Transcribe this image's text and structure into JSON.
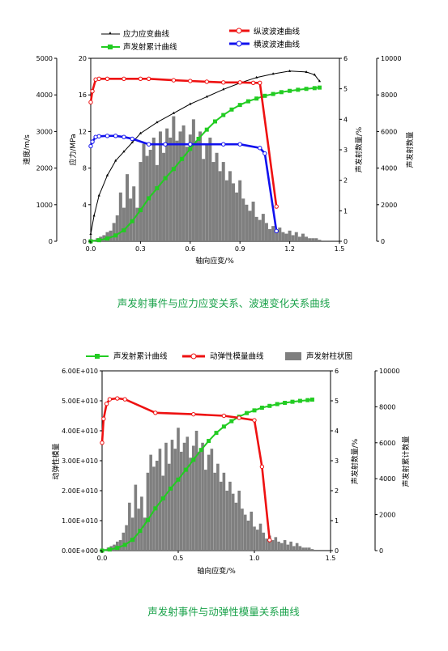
{
  "chart_data": [
    {
      "type": "line",
      "caption": "声发射事件与应力应变关系、波速变化关系曲线",
      "title": "",
      "xlabel": "轴向应变/%",
      "xlim": [
        0,
        1.5
      ],
      "xticks": [
        "0.0",
        "0.3",
        "0.6",
        "0.9",
        "1.2",
        "1.5"
      ],
      "axes": {
        "velocity": {
          "label": "速度/m/s",
          "lim": [
            0,
            5000
          ],
          "ticks": [
            "0",
            "1000",
            "2000",
            "3000",
            "4000",
            "5000"
          ]
        },
        "stress": {
          "label": "应力/MPa",
          "lim": [
            0,
            20
          ],
          "ticks": [
            "0",
            "4",
            "8",
            "12",
            "16",
            "20"
          ]
        },
        "ae_count": {
          "label": "声发射数量/%",
          "lim": [
            0,
            6
          ],
          "ticks": [
            "0",
            "1",
            "2",
            "3",
            "4",
            "5",
            "6"
          ]
        },
        "ae_cumulative": {
          "label": "声发射数量",
          "lim": [
            0,
            10000
          ],
          "ticks": [
            "0",
            "2000",
            "4000",
            "6000",
            "8000",
            "10000"
          ]
        }
      },
      "legend": [
        "应力应变曲线",
        "声发射累计曲线",
        "纵波波速曲线",
        "横波波速曲线"
      ],
      "series": [
        {
          "name": "应力应变曲线",
          "axis": "stress",
          "color": "#000000",
          "x": [
            0,
            0.02,
            0.05,
            0.1,
            0.15,
            0.2,
            0.25,
            0.3,
            0.4,
            0.5,
            0.6,
            0.7,
            0.8,
            0.9,
            1.0,
            1.1,
            1.2,
            1.3,
            1.35,
            1.38
          ],
          "y": [
            0.8,
            2.8,
            5,
            7.2,
            8.8,
            9.8,
            10.8,
            11.8,
            13,
            14,
            15,
            15.8,
            16.6,
            17.3,
            17.9,
            18.3,
            18.6,
            18.5,
            18.2,
            17.5
          ]
        },
        {
          "name": "声发射累计曲线",
          "axis": "ae_cumulative",
          "color": "#22cc22",
          "x": [
            0,
            0.05,
            0.1,
            0.15,
            0.2,
            0.25,
            0.3,
            0.35,
            0.4,
            0.45,
            0.5,
            0.55,
            0.6,
            0.65,
            0.7,
            0.75,
            0.8,
            0.85,
            0.9,
            0.95,
            1.0,
            1.05,
            1.1,
            1.15,
            1.2,
            1.25,
            1.3,
            1.35,
            1.38
          ],
          "y": [
            0,
            60,
            150,
            320,
            600,
            1100,
            1700,
            2350,
            2900,
            3450,
            3950,
            4500,
            5050,
            5600,
            6100,
            6550,
            6900,
            7200,
            7450,
            7650,
            7800,
            7950,
            8050,
            8150,
            8220,
            8280,
            8330,
            8370,
            8400
          ]
        },
        {
          "name": "纵波波速曲线",
          "axis": "velocity",
          "color": "#ee1111",
          "x": [
            0,
            0.01,
            0.03,
            0.05,
            0.1,
            0.2,
            0.3,
            0.35,
            0.5,
            0.6,
            0.7,
            0.8,
            0.9,
            0.98,
            1.02,
            1.12
          ],
          "y": [
            3800,
            4100,
            4420,
            4440,
            4440,
            4440,
            4440,
            4440,
            4400,
            4380,
            4360,
            4340,
            4340,
            4330,
            4330,
            950
          ]
        },
        {
          "name": "横波波速曲线",
          "axis": "velocity",
          "color": "#1111ee",
          "x": [
            0,
            0.01,
            0.03,
            0.05,
            0.1,
            0.15,
            0.2,
            0.25,
            0.35,
            0.45,
            0.6,
            0.8,
            0.9,
            1.02,
            1.05,
            1.12
          ],
          "y": [
            2600,
            2720,
            2850,
            2870,
            2880,
            2880,
            2850,
            2800,
            2650,
            2650,
            2650,
            2650,
            2650,
            2550,
            2400,
            280
          ]
        }
      ],
      "bars": {
        "axis": "ae_count",
        "color": "#7f7f7f",
        "x": [
          0.02,
          0.04,
          0.06,
          0.08,
          0.1,
          0.12,
          0.14,
          0.16,
          0.18,
          0.2,
          0.22,
          0.24,
          0.26,
          0.28,
          0.3,
          0.32,
          0.34,
          0.36,
          0.38,
          0.4,
          0.42,
          0.44,
          0.46,
          0.48,
          0.5,
          0.52,
          0.54,
          0.56,
          0.58,
          0.6,
          0.62,
          0.64,
          0.66,
          0.68,
          0.7,
          0.72,
          0.74,
          0.76,
          0.78,
          0.8,
          0.82,
          0.84,
          0.86,
          0.88,
          0.9,
          0.92,
          0.94,
          0.96,
          0.98,
          1.0,
          1.02,
          1.04,
          1.06,
          1.08,
          1.1,
          1.12,
          1.14,
          1.16,
          1.18,
          1.2,
          1.22,
          1.24,
          1.26,
          1.28,
          1.3,
          1.32,
          1.34,
          1.36,
          1.38
        ],
        "y": [
          0.05,
          0.1,
          0.15,
          0.2,
          0.3,
          0.35,
          0.6,
          0.85,
          1.6,
          1.1,
          2.2,
          1.4,
          1.8,
          1.1,
          2.6,
          3.2,
          2.8,
          3.0,
          3.4,
          2.5,
          3.6,
          2.9,
          3.7,
          3.4,
          4.1,
          3.3,
          3.6,
          3.8,
          3.1,
          3.5,
          4.0,
          3.3,
          3.6,
          2.7,
          3.2,
          3.4,
          2.6,
          2.9,
          2.3,
          2.6,
          2.0,
          2.3,
          1.9,
          1.6,
          2.0,
          1.4,
          1.2,
          1.0,
          1.3,
          0.8,
          0.7,
          0.9,
          0.6,
          0.4,
          0.5,
          0.35,
          0.45,
          0.3,
          0.25,
          0.35,
          0.2,
          0.3,
          0.15,
          0.25,
          0.15,
          0.1,
          0.1,
          0.1,
          0.05
        ]
      }
    },
    {
      "type": "line",
      "caption": "声发射事件与动弹性模量关系曲线",
      "title": "",
      "xlabel": "轴向应变/%",
      "xlim": [
        0,
        1.5
      ],
      "xticks": [
        "0.0",
        "0.5",
        "1.0",
        "1.5"
      ],
      "axes": {
        "modulus": {
          "label": "动弹性模量",
          "lim": [
            0,
            60000000000
          ],
          "ticks": [
            "0.00E+000",
            "1.00E+010",
            "2.00E+010",
            "3.00E+010",
            "4.00E+010",
            "5.00E+010",
            "6.00E+010"
          ]
        },
        "ae_count": {
          "label": "声发射数量/%",
          "lim": [
            0,
            6
          ],
          "ticks": [
            "0",
            "1",
            "2",
            "3",
            "4",
            "5",
            "6"
          ]
        },
        "ae_cumulative": {
          "label": "声发射累计数量",
          "lim": [
            0,
            10000
          ],
          "ticks": [
            "0",
            "2000",
            "4000",
            "6000",
            "8000",
            "10000"
          ]
        }
      },
      "legend": [
        "声发射累计曲线",
        "动弹性模量曲线",
        "声发射柱状图"
      ],
      "series": [
        {
          "name": "声发射累计曲线",
          "axis": "ae_cumulative",
          "color": "#22cc22",
          "x": [
            0,
            0.05,
            0.1,
            0.15,
            0.2,
            0.25,
            0.3,
            0.35,
            0.4,
            0.45,
            0.5,
            0.55,
            0.6,
            0.65,
            0.7,
            0.75,
            0.8,
            0.85,
            0.9,
            0.95,
            1.0,
            1.05,
            1.1,
            1.15,
            1.2,
            1.25,
            1.3,
            1.35,
            1.38
          ],
          "y": [
            0,
            60,
            150,
            320,
            600,
            1100,
            1700,
            2350,
            2900,
            3450,
            3950,
            4500,
            5050,
            5600,
            6100,
            6550,
            6900,
            7200,
            7450,
            7650,
            7800,
            7950,
            8050,
            8150,
            8220,
            8280,
            8330,
            8370,
            8400
          ]
        },
        {
          "name": "动弹性模量曲线",
          "axis": "modulus",
          "color": "#ee1111",
          "x": [
            0,
            0.01,
            0.03,
            0.05,
            0.1,
            0.15,
            0.35,
            0.6,
            0.8,
            0.9,
            1.0,
            1.05,
            1.1
          ],
          "y": [
            36000000000,
            44000000000,
            49000000000,
            50500000000,
            50800000000,
            50500000000,
            46000000000,
            45500000000,
            45000000000,
            44300000000,
            43500000000,
            28000000000,
            3500000000
          ]
        }
      ],
      "bars": {
        "axis": "ae_count",
        "color": "#7f7f7f",
        "x": [
          0.02,
          0.04,
          0.06,
          0.08,
          0.1,
          0.12,
          0.14,
          0.16,
          0.18,
          0.2,
          0.22,
          0.24,
          0.26,
          0.28,
          0.3,
          0.32,
          0.34,
          0.36,
          0.38,
          0.4,
          0.42,
          0.44,
          0.46,
          0.48,
          0.5,
          0.52,
          0.54,
          0.56,
          0.58,
          0.6,
          0.62,
          0.64,
          0.66,
          0.68,
          0.7,
          0.72,
          0.74,
          0.76,
          0.78,
          0.8,
          0.82,
          0.84,
          0.86,
          0.88,
          0.9,
          0.92,
          0.94,
          0.96,
          0.98,
          1.0,
          1.02,
          1.04,
          1.06,
          1.08,
          1.1,
          1.12,
          1.14,
          1.16,
          1.18,
          1.2,
          1.22,
          1.24,
          1.26,
          1.28,
          1.3,
          1.32,
          1.34,
          1.36,
          1.38
        ],
        "y": [
          0.05,
          0.1,
          0.15,
          0.2,
          0.3,
          0.35,
          0.6,
          0.85,
          1.6,
          1.1,
          2.2,
          1.4,
          1.8,
          1.1,
          2.6,
          3.2,
          2.8,
          3.0,
          3.4,
          2.5,
          3.6,
          2.9,
          3.7,
          3.4,
          4.1,
          3.3,
          3.6,
          3.8,
          3.1,
          3.5,
          4.0,
          3.3,
          3.6,
          2.7,
          3.2,
          3.4,
          2.6,
          2.9,
          2.3,
          2.6,
          2.0,
          2.3,
          1.9,
          1.6,
          2.0,
          1.4,
          1.2,
          1.0,
          1.3,
          0.8,
          0.7,
          0.9,
          0.6,
          0.4,
          0.5,
          0.35,
          0.45,
          0.3,
          0.25,
          0.35,
          0.2,
          0.3,
          0.15,
          0.25,
          0.15,
          0.1,
          0.1,
          0.1,
          0.05
        ]
      }
    }
  ]
}
